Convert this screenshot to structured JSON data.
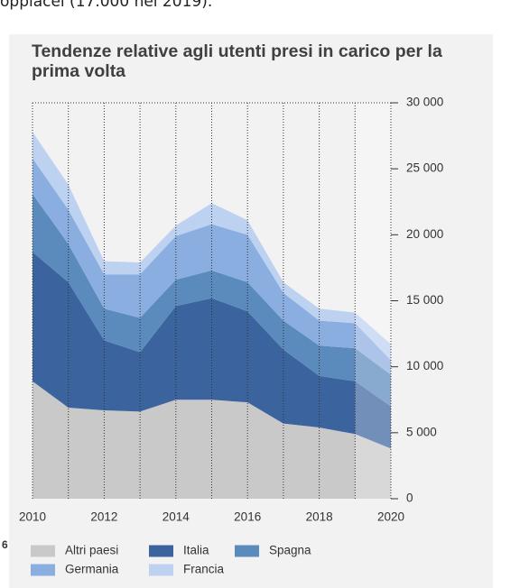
{
  "top_text": "oppiacei (17.000 nel 2019).",
  "page_marker": "6",
  "chart_data": {
    "type": "stacked_area",
    "title": "Tendenze relative agli utenti presi in carico per la prima volta",
    "x": [
      2010,
      2011,
      2012,
      2013,
      2014,
      2015,
      2016,
      2017,
      2018,
      2019,
      2020
    ],
    "xlim": [
      2010,
      2020
    ],
    "xticks": [
      2010,
      2012,
      2014,
      2016,
      2018,
      2020
    ],
    "ylim": [
      0,
      30000
    ],
    "yticks": [
      0,
      {
        "value": 5000,
        "label": "5 000"
      },
      {
        "value": 10000,
        "label": "10 000"
      },
      {
        "value": 15000,
        "label": "15 000"
      },
      {
        "value": 20000,
        "label": "20 000"
      },
      {
        "value": 25000,
        "label": "25 000"
      },
      {
        "value": 30000,
        "label": "30 000"
      }
    ],
    "grid": true,
    "series": [
      {
        "name": "Altri paesi",
        "color": "#c9c9c9",
        "values": [
          8900,
          6900,
          6700,
          6600,
          7500,
          7500,
          7300,
          5700,
          5400,
          4900,
          3800
        ]
      },
      {
        "name": "Italia",
        "color": "#3b649f",
        "values": [
          9800,
          9500,
          5300,
          4500,
          7100,
          7700,
          6900,
          5600,
          3900,
          4000,
          3200
        ]
      },
      {
        "name": "Spagna",
        "color": "#5b8abd",
        "values": [
          4400,
          2900,
          2400,
          2600,
          2000,
          2100,
          2200,
          2200,
          2300,
          2500,
          2400
        ]
      },
      {
        "name": "Germania",
        "color": "#8baee0",
        "values": [
          2700,
          2600,
          2600,
          3300,
          3300,
          3500,
          3600,
          2100,
          1900,
          1900,
          1100
        ]
      },
      {
        "name": "Francia",
        "color": "#bdd1f1",
        "values": [
          2000,
          1900,
          1000,
          900,
          800,
          1600,
          1100,
          800,
          900,
          800,
          1200
        ]
      }
    ]
  }
}
